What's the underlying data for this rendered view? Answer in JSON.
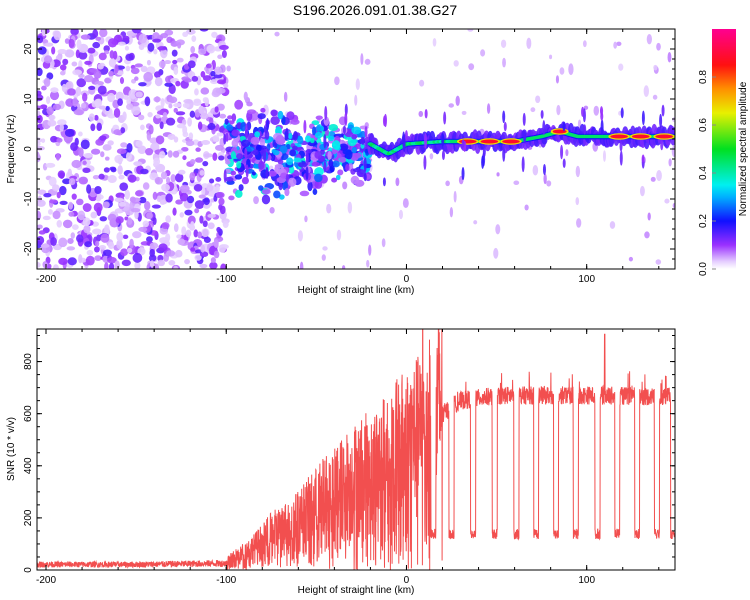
{
  "figure_title": "S196.2026.091.01.38.G27",
  "chart_data": [
    {
      "type": "heatmap",
      "title": "S196.2026.091.01.38.G27",
      "xlabel": "Height of straight line (km)",
      "ylabel": "Frequency (Hz)",
      "xlim": [
        -205,
        149
      ],
      "ylim": [
        -24,
        24
      ],
      "xticks": [
        -200,
        -100,
        0,
        100
      ],
      "yticks": [
        -20,
        -10,
        0,
        10,
        20
      ],
      "colorbar": {
        "label": "Normalized spectral amplitude",
        "range": [
          0.0,
          1.0
        ],
        "ticks": [
          0.0,
          0.2,
          0.4,
          0.6,
          0.8
        ],
        "tick_labels": [
          "0.0",
          "0.2",
          "0.4",
          "0.6",
          "0.8"
        ],
        "colormap": "rainbow (white-purple-blue-cyan-green-yellow-red-magenta)"
      },
      "features": [
        {
          "name": "noise-region",
          "x_range": [
            -205,
            -100
          ],
          "freq_range": [
            -24,
            24
          ],
          "amplitude": "low (0.05-0.2)"
        },
        {
          "name": "transition-region",
          "x_range": [
            -100,
            -20
          ],
          "freq_range": [
            -8,
            6
          ],
          "amplitude": "medium (0.2-0.45)"
        },
        {
          "name": "carrier-trace",
          "x_range": [
            -20,
            149
          ],
          "freq_center": [
            {
              "x": -20,
              "f": 1.0
            },
            {
              "x": -10,
              "f": -1.0
            },
            {
              "x": 0,
              "f": 1.0
            },
            {
              "x": 20,
              "f": 1.5
            },
            {
              "x": 60,
              "f": 1.5
            },
            {
              "x": 75,
              "f": 2.5
            },
            {
              "x": 85,
              "f": 3.5
            },
            {
              "x": 95,
              "f": 2.5
            },
            {
              "x": 110,
              "f": 2.5
            },
            {
              "x": 149,
              "f": 2.5
            }
          ],
          "amplitude": "high (0.5-0.9)"
        }
      ]
    },
    {
      "type": "line",
      "xlabel": "Height of straight line (km)",
      "ylabel": "SNR (10 * v/v)",
      "xlim": [
        -205,
        149
      ],
      "ylim": [
        0,
        925
      ],
      "xticks": [
        -200,
        -100,
        0,
        100
      ],
      "yticks": [
        0,
        200,
        400,
        600,
        800
      ],
      "series": [
        {
          "name": "SNR",
          "color": "#f03030",
          "envelope": [
            {
              "x": -205,
              "y": 25
            },
            {
              "x": -150,
              "y": 25
            },
            {
              "x": -100,
              "y": 30
            },
            {
              "x": -85,
              "y": 80
            },
            {
              "x": -75,
              "y": 130
            },
            {
              "x": -60,
              "y": 180
            },
            {
              "x": -45,
              "y": 260
            },
            {
              "x": -30,
              "y": 330
            },
            {
              "x": -15,
              "y": 380
            },
            {
              "x": 0,
              "y": 460
            },
            {
              "x": 10,
              "y": 500
            },
            {
              "x": 20,
              "y": 600
            },
            {
              "x": 30,
              "y": 650
            },
            {
              "x": 50,
              "y": 670
            },
            {
              "x": 100,
              "y": 670
            },
            {
              "x": 149,
              "y": 665
            }
          ],
          "spikes": [
            {
              "x": 9,
              "y": 925
            },
            {
              "x": 110,
              "y": 905
            }
          ],
          "dropouts_x": [
            15,
            25,
            37,
            49,
            61,
            72,
            83,
            94,
            106,
            117,
            128,
            139,
            148
          ],
          "dropout_level": 130
        }
      ]
    }
  ]
}
